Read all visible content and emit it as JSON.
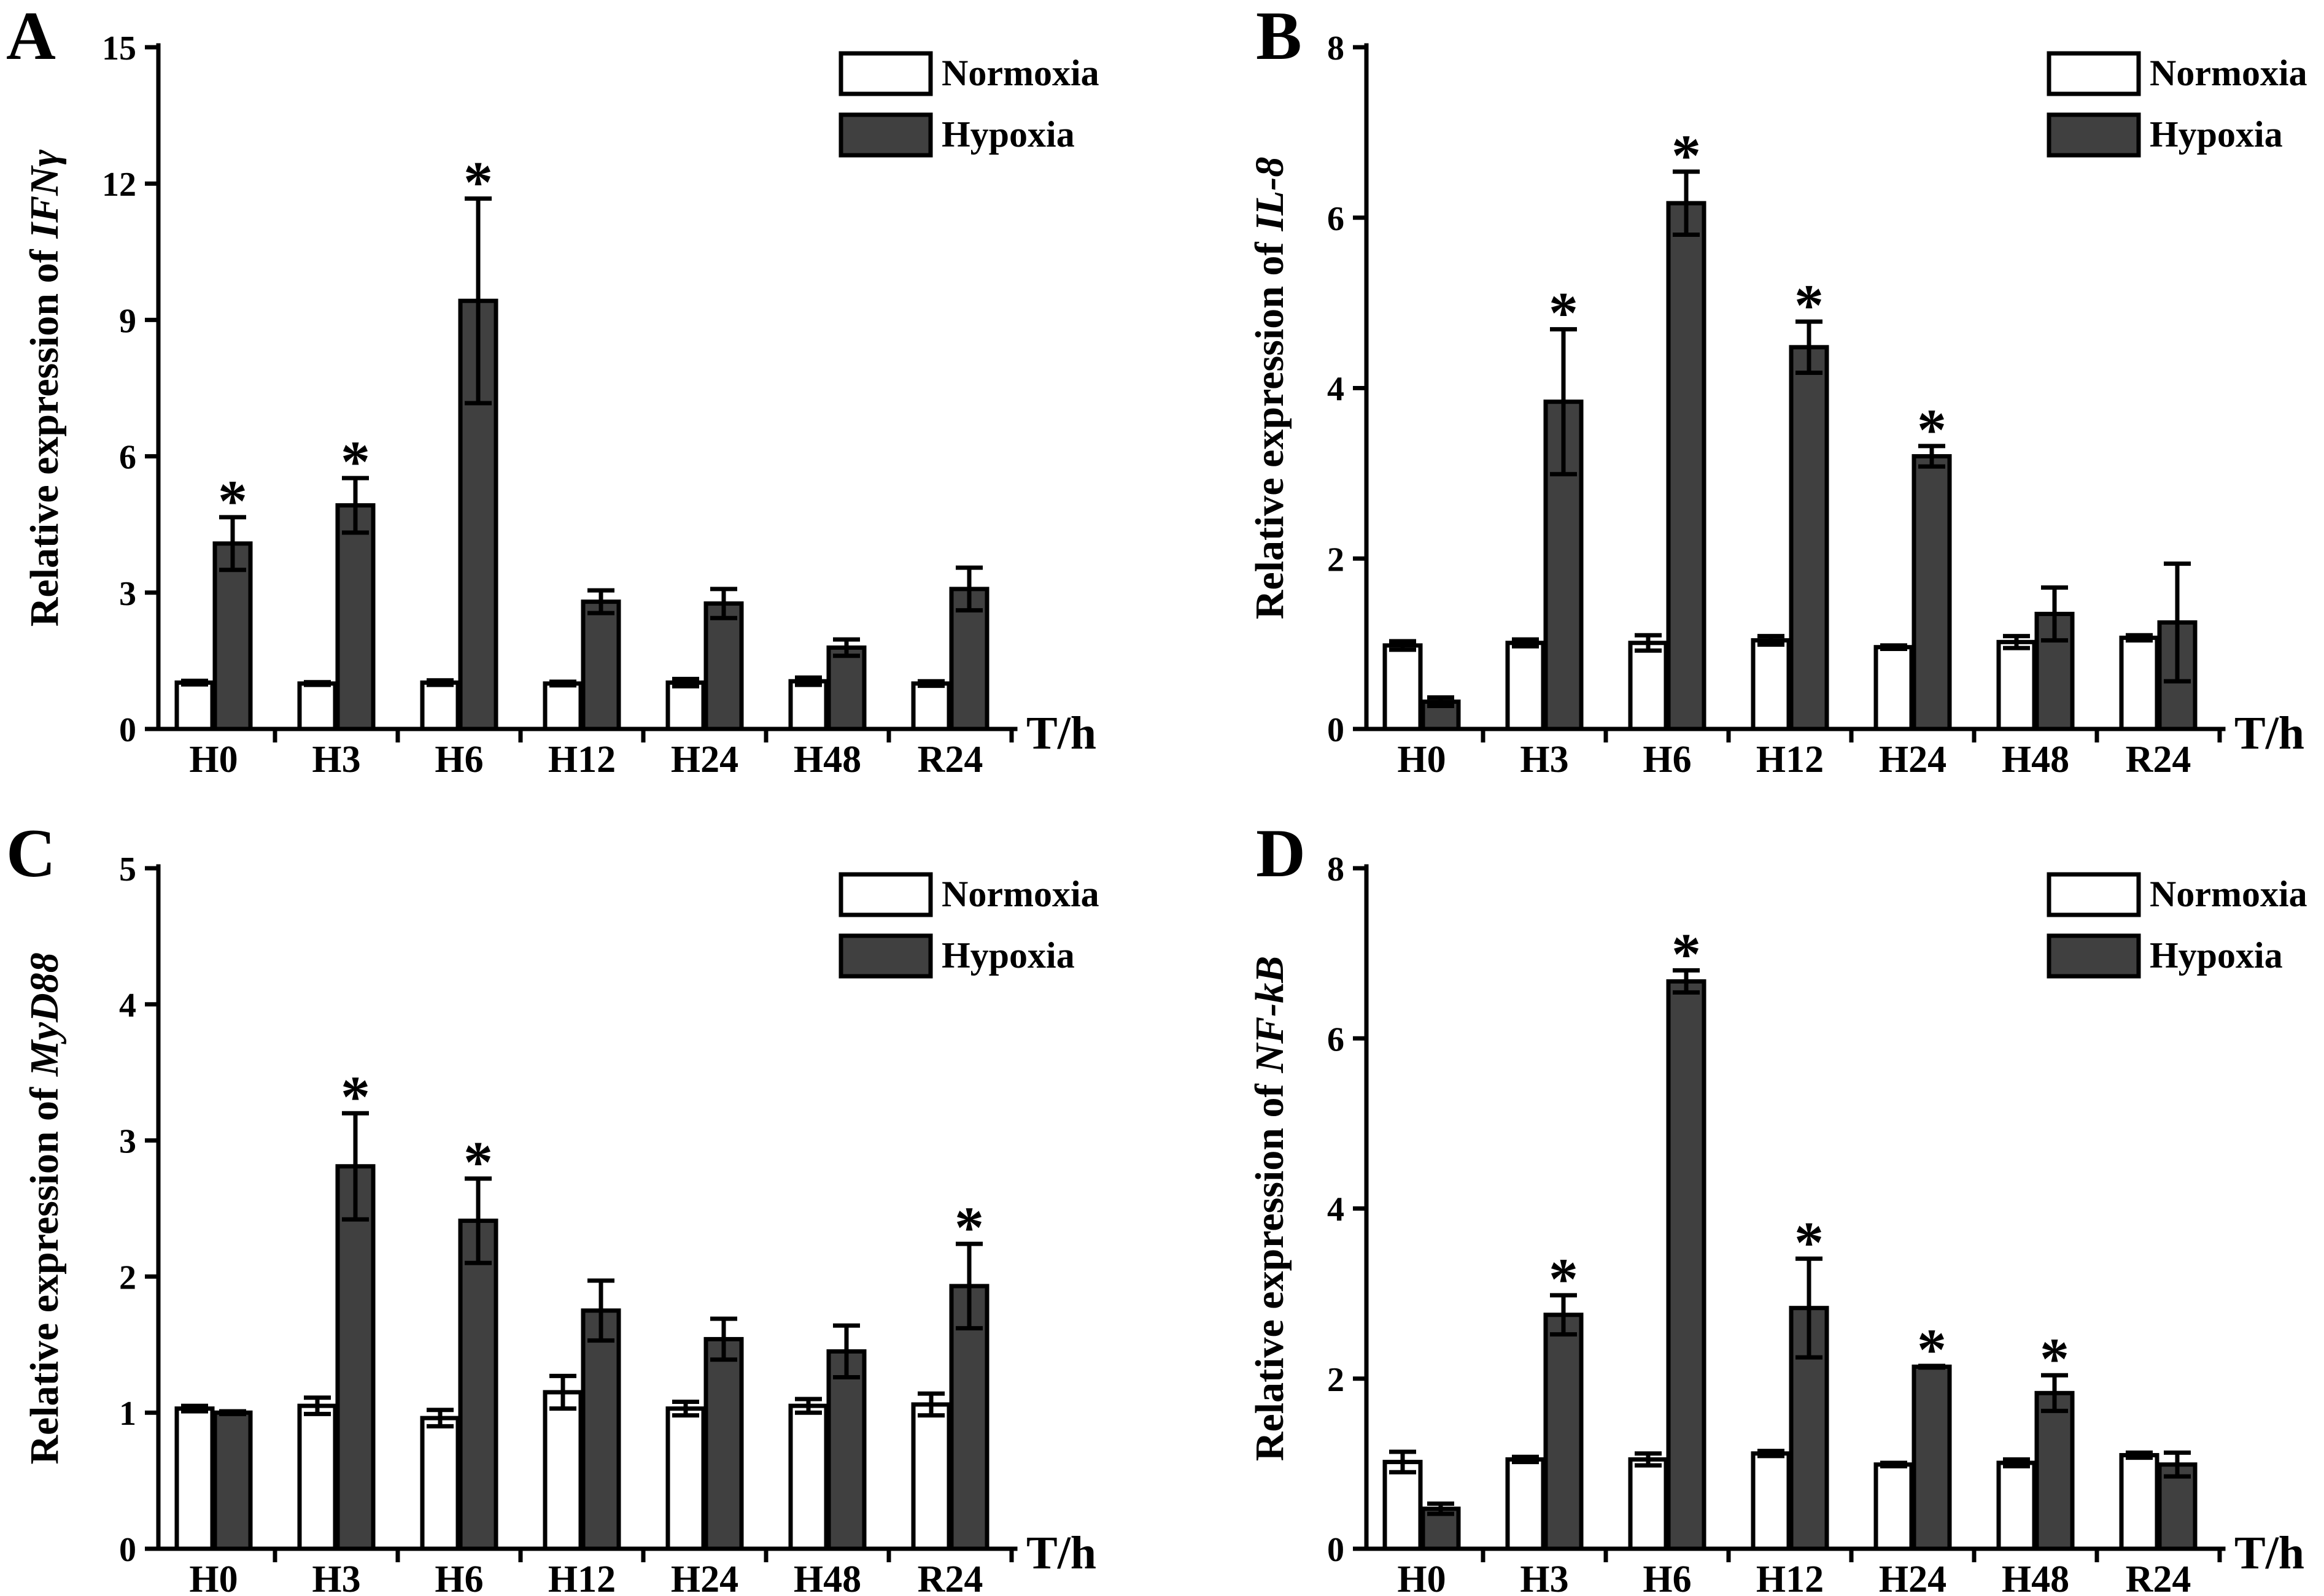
{
  "figure": {
    "significance_marker": "*"
  },
  "chart_data": [
    {
      "panel": "A",
      "type": "bar",
      "ylabel": "Relative expression of",
      "ylabel_gene": "IFNγ",
      "xlabel": "T/h",
      "ylim": [
        0,
        15
      ],
      "yticks": [
        0,
        3,
        6,
        9,
        12,
        15
      ],
      "grid": false,
      "legend": "top-right",
      "categories": [
        "H0",
        "H3",
        "H6",
        "H12",
        "H24",
        "H48",
        "R24"
      ],
      "series": [
        {
          "name": "Normoxia",
          "color": "#ffffff",
          "values": [
            1.02,
            1.0,
            1.02,
            1.0,
            1.02,
            1.05,
            1.0
          ],
          "errors": [
            0.04,
            0.03,
            0.05,
            0.04,
            0.08,
            0.08,
            0.05
          ]
        },
        {
          "name": "Hypoxia",
          "color": "#404040",
          "values": [
            4.08,
            4.92,
            9.42,
            2.8,
            2.76,
            1.79,
            3.08
          ],
          "errors": [
            0.58,
            0.6,
            2.25,
            0.25,
            0.32,
            0.18,
            0.47
          ]
        }
      ],
      "significant": [
        true,
        true,
        true,
        false,
        false,
        false,
        false
      ]
    },
    {
      "panel": "B",
      "type": "bar",
      "ylabel": "Relative expression of",
      "ylabel_gene": "IL-8",
      "xlabel": "T/h",
      "ylim": [
        0,
        8
      ],
      "yticks": [
        0,
        2,
        4,
        6,
        8
      ],
      "grid": false,
      "legend": "top-right",
      "categories": [
        "H0",
        "H3",
        "H6",
        "H12",
        "H24",
        "H48",
        "R24"
      ],
      "series": [
        {
          "name": "Normoxia",
          "color": "#ffffff",
          "values": [
            0.98,
            1.01,
            1.01,
            1.04,
            0.96,
            1.02,
            1.07
          ],
          "errors": [
            0.05,
            0.04,
            0.09,
            0.05,
            0.02,
            0.07,
            0.03
          ]
        },
        {
          "name": "Hypoxia",
          "color": "#404040",
          "values": [
            0.32,
            3.84,
            6.17,
            4.48,
            3.2,
            1.35,
            1.25
          ],
          "errors": [
            0.05,
            0.85,
            0.37,
            0.3,
            0.12,
            0.31,
            0.69
          ]
        }
      ],
      "significant": [
        false,
        true,
        true,
        true,
        true,
        false,
        false
      ]
    },
    {
      "panel": "C",
      "type": "bar",
      "ylabel": "Relative expression of",
      "ylabel_gene": "MyD88",
      "xlabel": "T/h",
      "ylim": [
        0,
        5
      ],
      "yticks": [
        0,
        1,
        2,
        3,
        4,
        5
      ],
      "grid": false,
      "legend": "top-right",
      "categories": [
        "H0",
        "H3",
        "H6",
        "H12",
        "H24",
        "H48",
        "R24"
      ],
      "series": [
        {
          "name": "Normoxia",
          "color": "#ffffff",
          "values": [
            1.03,
            1.05,
            0.96,
            1.15,
            1.03,
            1.05,
            1.06
          ],
          "errors": [
            0.02,
            0.06,
            0.06,
            0.12,
            0.05,
            0.05,
            0.08
          ]
        },
        {
          "name": "Hypoxia",
          "color": "#404040",
          "values": [
            1.0,
            2.81,
            2.41,
            1.75,
            1.54,
            1.45,
            1.93
          ],
          "errors": [
            0.01,
            0.39,
            0.31,
            0.22,
            0.15,
            0.19,
            0.31
          ]
        }
      ],
      "significant": [
        false,
        true,
        true,
        false,
        false,
        false,
        true
      ]
    },
    {
      "panel": "D",
      "type": "bar",
      "ylabel": "Relative expression of",
      "ylabel_gene": "NF-kB",
      "xlabel": "T/h",
      "ylim": [
        0,
        8
      ],
      "yticks": [
        0,
        2,
        4,
        6,
        8
      ],
      "grid": false,
      "legend": "top-right",
      "categories": [
        "H0",
        "H3",
        "H6",
        "H12",
        "H24",
        "H48",
        "R24"
      ],
      "series": [
        {
          "name": "Normoxia",
          "color": "#ffffff",
          "values": [
            1.02,
            1.05,
            1.05,
            1.12,
            0.99,
            1.01,
            1.1
          ],
          "errors": [
            0.12,
            0.03,
            0.07,
            0.03,
            0.02,
            0.04,
            0.03
          ]
        },
        {
          "name": "Hypoxia",
          "color": "#404040",
          "values": [
            0.47,
            2.75,
            6.67,
            2.83,
            2.14,
            1.83,
            0.99
          ],
          "errors": [
            0.06,
            0.23,
            0.13,
            0.58,
            0.01,
            0.21,
            0.14
          ]
        }
      ],
      "significant": [
        false,
        true,
        true,
        true,
        true,
        true,
        false
      ]
    }
  ]
}
